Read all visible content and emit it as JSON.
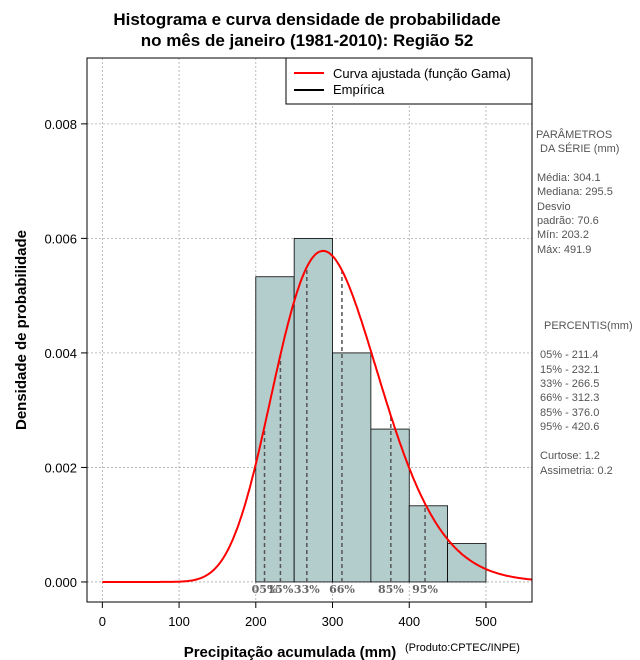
{
  "chart_data": {
    "type": "bar",
    "title_line1": "Histograma e curva densidade de probabilidade",
    "title_line2": "no mês de janeiro (1981-2010): Região 52",
    "xlabel": "Precipitação acumulada (mm)",
    "ylabel": "Densidade de probabilidade",
    "credit": "(Produto:CPTEC/INPE)",
    "xlim": [
      -20,
      560
    ],
    "ylim": [
      -0.00035,
      0.00915
    ],
    "xticks": [
      0,
      100,
      200,
      300,
      400,
      500
    ],
    "xtick_labels": [
      "0",
      "100",
      "200",
      "300",
      "400",
      "500"
    ],
    "yticks": [
      0.0,
      0.002,
      0.004,
      0.006,
      0.008
    ],
    "ytick_labels": [
      "0.000",
      "0.002",
      "0.004",
      "0.006",
      "0.008"
    ],
    "grid": true,
    "bins": [
      {
        "start": 200,
        "end": 250,
        "value": 0.00533
      },
      {
        "start": 250,
        "end": 300,
        "value": 0.006
      },
      {
        "start": 300,
        "end": 350,
        "value": 0.004
      },
      {
        "start": 350,
        "end": 400,
        "value": 0.00267
      },
      {
        "start": 400,
        "end": 450,
        "value": 0.00133
      },
      {
        "start": 450,
        "end": 500,
        "value": 0.00067
      }
    ],
    "fitted_curve": {
      "name": "Curva ajustada (função Gama)",
      "color": "#ff0000",
      "mean": 304.1,
      "sd": 70.6
    },
    "empirical": {
      "name": "Empírica",
      "color": "#000000"
    },
    "percentile_lines": [
      {
        "label": "05%",
        "x": 211.4
      },
      {
        "label": "15%",
        "x": 232.1
      },
      {
        "label": "33%",
        "x": 266.5
      },
      {
        "label": "66%",
        "x": 312.3
      },
      {
        "label": "85%",
        "x": 376.0
      },
      {
        "label": "95%",
        "x": 420.6
      }
    ],
    "legend_position": "top-right",
    "bar_color": "#b3cccc"
  },
  "side_panel": {
    "params_header_1": "PARÂMETROS",
    "params_header_2": "DA SÉRIE (mm)",
    "media": "Média:  304.1",
    "mediana": "Mediana:  295.5",
    "desvio_1": "Desvio",
    "desvio_2": "padrão:  70.6",
    "min": "Mín:  203.2",
    "max": "Máx:  491.9",
    "percentis_header": "PERCENTIS(mm)",
    "p05": "05% -   211.4",
    "p15": "15% -   232.1",
    "p33": "33% -   266.5",
    "p66": "66% -   312.3",
    "p85": "85% -   376.0",
    "p95": "95% -   420.6",
    "curtose": "Curtose:  1.2",
    "assimetria": "Assimetria:  0.2"
  }
}
